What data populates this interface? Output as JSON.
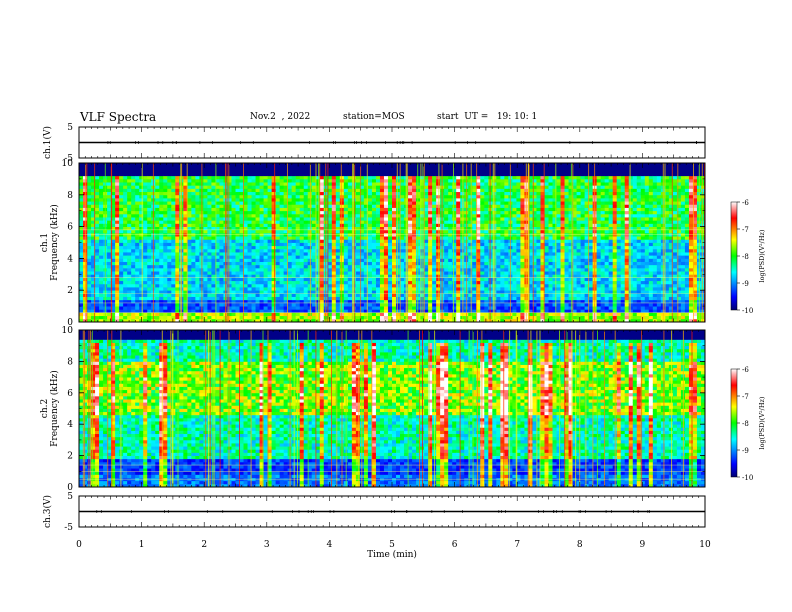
{
  "header": {
    "title": "VLF Spectra",
    "date": "Nov.2  , 2022",
    "station": "station=MOS",
    "start": "start  UT =   19: 10: 1"
  },
  "colors": {
    "ink": "#000000",
    "background": "#ffffff"
  },
  "chart_data": [
    {
      "type": "line",
      "panel": "ch1-waveform",
      "ylabel": "ch.1(V)",
      "ylim": [
        -5,
        5
      ],
      "yticks": [
        "5",
        "-5"
      ],
      "x": [
        0,
        10
      ],
      "values": [
        0,
        0
      ]
    },
    {
      "type": "heatmap",
      "panel": "ch1-spectrogram",
      "ylabel": "ch.1\nFrequency (kHz)",
      "ylim": [
        0,
        10
      ],
      "yticks": [
        "0",
        "2",
        "4",
        "6",
        "8",
        "10"
      ],
      "xlim": [
        0,
        10
      ],
      "colorbar": {
        "label": "log(PSD)(V²/Hz)",
        "range": [
          -10,
          -6
        ],
        "ticks": [
          "-6",
          "-7",
          "-8",
          "-9",
          "-10"
        ]
      }
    },
    {
      "type": "heatmap",
      "panel": "ch2-spectrogram",
      "ylabel": "ch.2\nFrequency (kHz)",
      "ylim": [
        0,
        10
      ],
      "yticks": [
        "0",
        "2",
        "4",
        "6",
        "8",
        "10"
      ],
      "xlim": [
        0,
        10
      ],
      "colorbar": {
        "label": "log(PSD)(V²/Hz)",
        "range": [
          -10,
          -6
        ],
        "ticks": [
          "-6",
          "-7",
          "-8",
          "-9",
          "-10"
        ]
      }
    },
    {
      "type": "line",
      "panel": "ch3-waveform",
      "ylabel": "ch.3(V)",
      "ylim": [
        -5,
        5
      ],
      "yticks": [
        "5",
        "-5"
      ],
      "x": [
        0,
        10
      ],
      "values": [
        0,
        0
      ]
    }
  ],
  "xaxis": {
    "label": "Time  (min)",
    "ticks": [
      "0",
      "1",
      "2",
      "3",
      "4",
      "5",
      "6",
      "7",
      "8",
      "9",
      "10"
    ],
    "xlim": [
      0,
      10
    ]
  }
}
